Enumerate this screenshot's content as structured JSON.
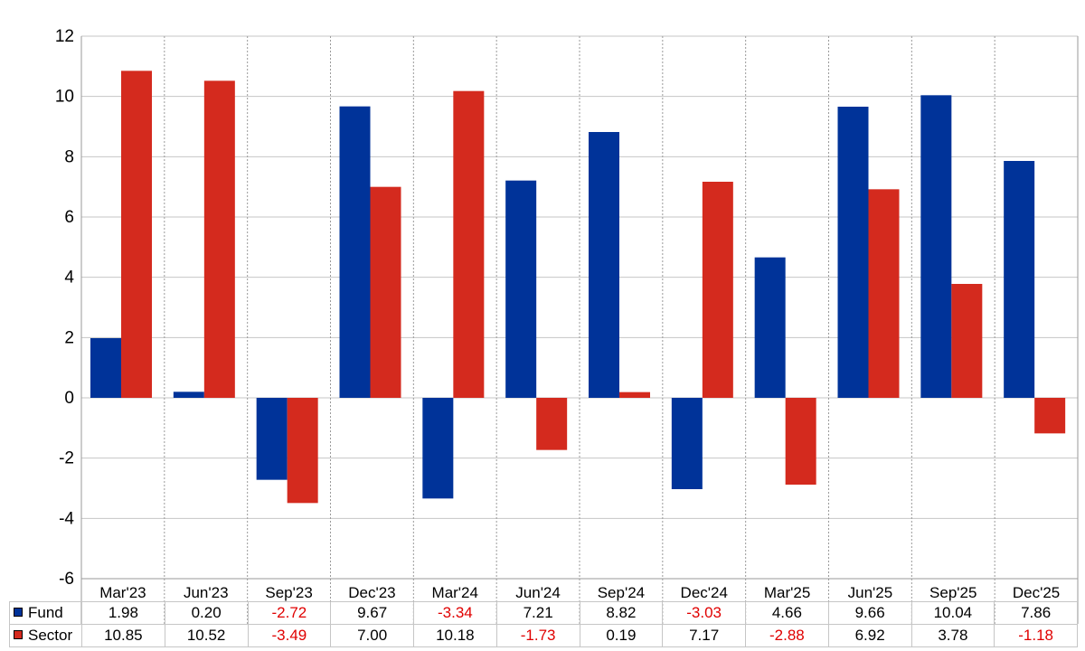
{
  "colors": {
    "fund": "#003399",
    "sector": "#d42a1e",
    "negative": "#e00000",
    "grid": "#c6c6c6"
  },
  "chart_data": {
    "type": "bar",
    "categories": [
      "Mar'23",
      "Jun'23",
      "Sep'23",
      "Dec'23",
      "Mar'24",
      "Jun'24",
      "Sep'24",
      "Dec'24",
      "Mar'25",
      "Jun'25",
      "Sep'25",
      "Dec'25"
    ],
    "series": [
      {
        "name": "Fund",
        "values": [
          1.98,
          0.2,
          -2.72,
          9.67,
          -3.34,
          7.21,
          8.82,
          -3.03,
          4.66,
          9.66,
          10.04,
          7.86
        ],
        "labels": [
          "1.98",
          "0.20",
          "-2.72",
          "9.67",
          "-3.34",
          "7.21",
          "8.82",
          "-3.03",
          "4.66",
          "9.66",
          "10.04",
          "7.86"
        ]
      },
      {
        "name": "Sector",
        "values": [
          10.85,
          10.52,
          -3.49,
          7.0,
          10.18,
          -1.73,
          0.19,
          7.17,
          -2.88,
          6.92,
          3.78,
          -1.18
        ],
        "labels": [
          "10.85",
          "10.52",
          "-3.49",
          "7.00",
          "10.18",
          "-1.73",
          "0.19",
          "7.17",
          "-2.88",
          "6.92",
          "3.78",
          "-1.18"
        ]
      }
    ],
    "yticks": [
      "12",
      "10",
      "8",
      "6",
      "4",
      "2",
      "0",
      "-2",
      "-4",
      "-6"
    ],
    "ylim": [
      -6,
      12
    ],
    "grid": true,
    "legend": "data-table-below"
  }
}
